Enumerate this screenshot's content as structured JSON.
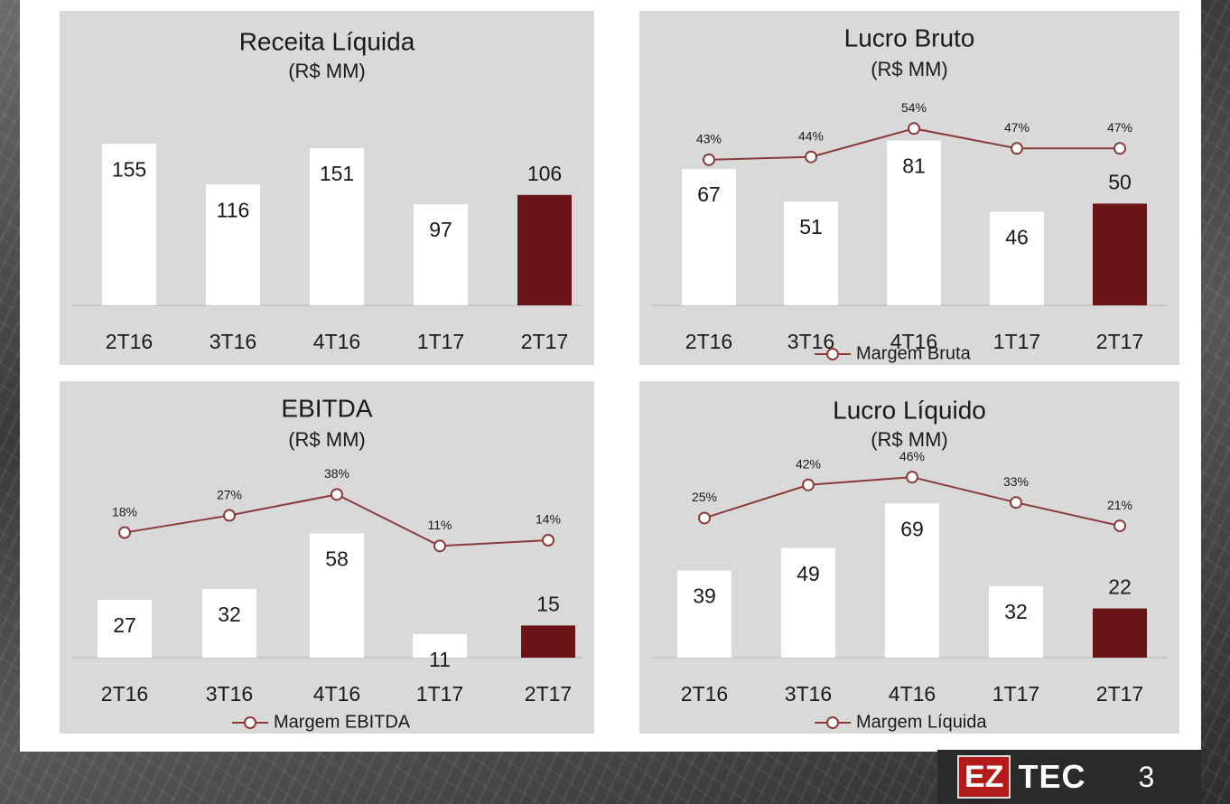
{
  "colors": {
    "bar": "#ffffff",
    "bar_highlight": "#6b1415",
    "line": "#8b3a3a",
    "panel_bg": "#d9d9d9"
  },
  "chart_data": [
    {
      "type": "bar",
      "title": "Receita Líquida",
      "subtitle": "(R$ MM)",
      "categories": [
        "2T16",
        "3T16",
        "4T16",
        "1T17",
        "2T17"
      ],
      "values": [
        155,
        116,
        151,
        97,
        106
      ],
      "highlight_index": 4,
      "ylim": [
        0,
        170
      ]
    },
    {
      "type": "bar",
      "title": "Lucro Bruto",
      "subtitle": "(R$ MM)",
      "categories": [
        "2T16",
        "3T16",
        "4T16",
        "1T17",
        "2T17"
      ],
      "values": [
        67,
        51,
        81,
        46,
        50
      ],
      "highlight_index": 4,
      "ylim": [
        0,
        95
      ],
      "line": {
        "name": "Margem Bruta",
        "values": [
          43,
          44,
          54,
          47,
          47
        ],
        "labels": [
          "43%",
          "44%",
          "54%",
          "47%",
          "47%"
        ],
        "ylim": [
          0,
          70
        ]
      }
    },
    {
      "type": "bar",
      "title": "EBITDA",
      "subtitle": "(R$ MM)",
      "categories": [
        "2T16",
        "3T16",
        "4T16",
        "1T17",
        "2T17"
      ],
      "values": [
        27,
        32,
        58,
        11,
        15
      ],
      "highlight_index": 4,
      "ylim": [
        0,
        70
      ],
      "line": {
        "name": "Margem EBITDA",
        "values": [
          18,
          27,
          38,
          11,
          14
        ],
        "labels": [
          "18%",
          "27%",
          "38%",
          "11%",
          "14%"
        ],
        "ylim": [
          -40,
          50
        ]
      }
    },
    {
      "type": "bar",
      "title": "Lucro Líquido",
      "subtitle": "(R$ MM)",
      "categories": [
        "2T16",
        "3T16",
        "4T16",
        "1T17",
        "2T17"
      ],
      "values": [
        39,
        49,
        69,
        32,
        22
      ],
      "highlight_index": 4,
      "ylim": [
        0,
        80
      ],
      "line": {
        "name": "Margem Líquida",
        "values": [
          25,
          42,
          46,
          33,
          21
        ],
        "labels": [
          "25%",
          "42%",
          "46%",
          "33%",
          "21%"
        ],
        "ylim": [
          -30,
          60
        ]
      }
    }
  ],
  "logo": {
    "left": "EZ",
    "right": "TEC"
  },
  "page_number": "3"
}
